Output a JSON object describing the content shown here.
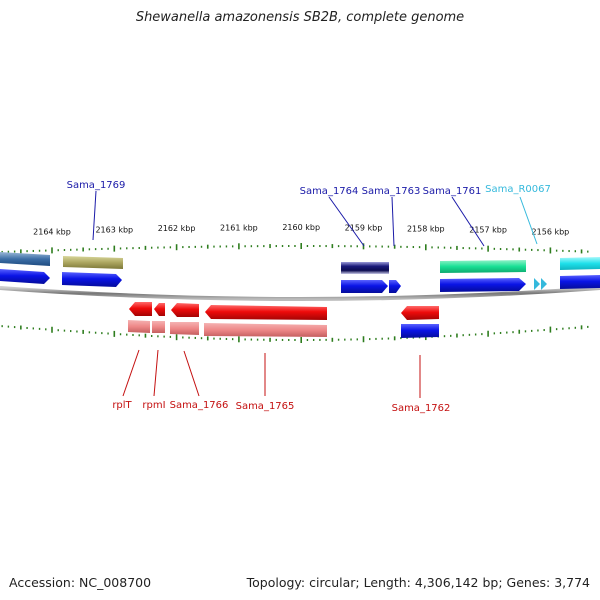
{
  "title": "Shewanella amazonensis SB2B, complete genome",
  "footer": {
    "accession": "Accession: NC_008700",
    "summary": "Topology: circular; Length: 4,306,142 bp; Genes: 3,774"
  },
  "colors": {
    "forward_cds": "#0a14e6",
    "reverse_cds": "#ee0b0b",
    "reverse_shadow": "#f08c8c",
    "tick": "#2e7d1e",
    "backbone": "#888888",
    "label_forward": "#1a1aa8",
    "label_reverse": "#c41010",
    "label_rna": "#35b9dc"
  },
  "scale": {
    "unit": "kbp",
    "labels": [
      "2164 kbp",
      "2163 kbp",
      "2162 kbp",
      "2161 kbp",
      "2160 kbp",
      "2159 kbp",
      "2158 kbp",
      "2157 kbp",
      "2156 kbp"
    ],
    "label_kbp": [
      2164,
      2163,
      2162,
      2161,
      2160,
      2159,
      2158,
      2157,
      2156
    ]
  },
  "forward_labels": [
    {
      "text": "Sama_1769",
      "kind": "cds"
    },
    {
      "text": "Sama_1764",
      "kind": "cds"
    },
    {
      "text": "Sama_1763",
      "kind": "cds"
    },
    {
      "text": "Sama_1761",
      "kind": "cds"
    },
    {
      "text": "Sama_R0067",
      "kind": "rna"
    }
  ],
  "reverse_labels": [
    {
      "text": "rplT"
    },
    {
      "text": "rpmI"
    },
    {
      "text": "Sama_1766"
    },
    {
      "text": "Sama_1765"
    },
    {
      "text": "Sama_1762"
    }
  ]
}
